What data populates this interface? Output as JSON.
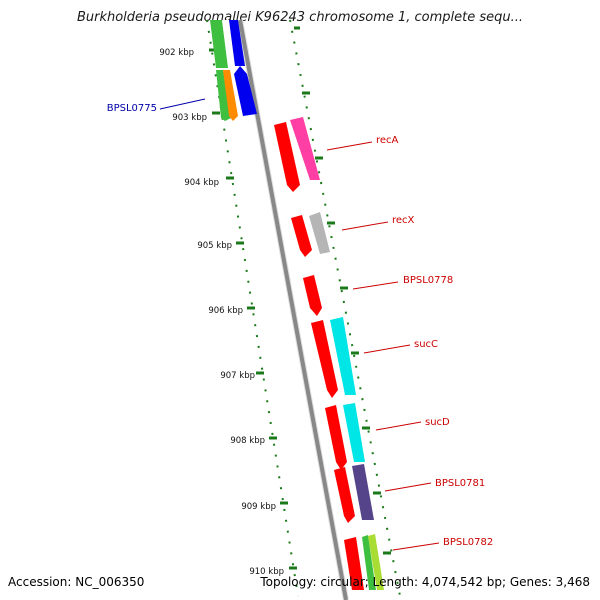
{
  "title": "Burkholderia pseudomallei K96243 chromosome 1, complete sequ...",
  "footer": {
    "accession": "Accession: NC_006350",
    "topology": "Topology: circular; Length: 4,074,542 bp; Genes: 3,468"
  },
  "kbp_labels": [
    "902 kbp",
    "903 kbp",
    "904 kbp",
    "905 kbp",
    "906 kbp",
    "907 kbp",
    "908 kbp",
    "909 kbp",
    "910 kbp"
  ],
  "gene_labels": [
    {
      "name": "BPSL0775",
      "color": "#0000aa"
    },
    {
      "name": "recA",
      "color": "#cc0000"
    },
    {
      "name": "recX",
      "color": "#cc0000"
    },
    {
      "name": "BPSL0778",
      "color": "#cc0000"
    },
    {
      "name": "sucC",
      "color": "#cc0000"
    },
    {
      "name": "sucD",
      "color": "#cc0000"
    },
    {
      "name": "BPSL0781",
      "color": "#cc0000"
    },
    {
      "name": "BPSL0782",
      "color": "#cc0000"
    }
  ],
  "colors": {
    "backbone": "#888888",
    "tick": "#1a7a1a",
    "cds_forward": "#ff0000",
    "pink": "#ff3fa3",
    "grey": "#b5b5b5",
    "cyan": "#00e5e5",
    "purple": "#55448a",
    "green": "#3fbf3f",
    "blue": "#0000ee",
    "orange": "#ff8c00",
    "lime": "#aadd33"
  }
}
